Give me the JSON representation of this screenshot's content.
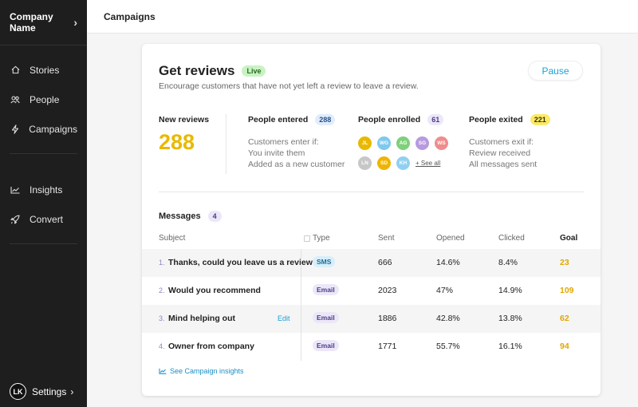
{
  "sidebar": {
    "company": "Company Name",
    "items_primary": [
      {
        "label": "Stories",
        "icon": "home-icon"
      },
      {
        "label": "People",
        "icon": "people-icon"
      },
      {
        "label": "Campaigns",
        "icon": "lightning-icon"
      }
    ],
    "items_secondary": [
      {
        "label": "Insights",
        "icon": "chart-icon"
      },
      {
        "label": "Convert",
        "icon": "rocket-icon"
      }
    ],
    "settings": {
      "label": "Settings",
      "avatar_initials": "LK"
    }
  },
  "topbar": {
    "title": "Campaigns"
  },
  "campaign": {
    "title": "Get reviews",
    "status": "Live",
    "description": "Encourage customers that have not yet left a review to leave a review.",
    "pause_label": "Pause",
    "new_reviews_label": "New reviews",
    "new_reviews_value": "288",
    "entered": {
      "label": "People entered",
      "count": "288",
      "lines": [
        "Customers enter if:",
        "You invite them",
        "Added as a new customer"
      ]
    },
    "enrolled": {
      "label": "People enrolled",
      "count": "61",
      "avatars": [
        {
          "initials": "JL",
          "color": "#e9b800"
        },
        {
          "initials": "WG",
          "color": "#7fc8ee"
        },
        {
          "initials": "AG",
          "color": "#7fd07a"
        },
        {
          "initials": "SG",
          "color": "#b79ae0"
        },
        {
          "initials": "WS",
          "color": "#f08c8c"
        },
        {
          "initials": "LN",
          "color": "#c7c7c7"
        },
        {
          "initials": "SD",
          "color": "#f0b400"
        },
        {
          "initials": "KH",
          "color": "#8fd0f2"
        }
      ],
      "see_all": "+ See all"
    },
    "exited": {
      "label": "People exited",
      "count": "221",
      "lines": [
        "Customers exit if:",
        "Review received",
        "All messages sent"
      ]
    }
  },
  "messages": {
    "title": "Messages",
    "count": "4",
    "columns": [
      "Subject",
      "Type",
      "Sent",
      "Opened",
      "Clicked",
      "Goal"
    ],
    "rows": [
      {
        "num": "1.",
        "subject": "Thanks, could you leave us a review",
        "type": "SMS",
        "sent": "666",
        "opened": "14.6%",
        "clicked": "8.4%",
        "goal": "23",
        "edit": ""
      },
      {
        "num": "2.",
        "subject": "Would you recommend",
        "type": "Email",
        "sent": "2023",
        "opened": "47%",
        "clicked": "14.9%",
        "goal": "109",
        "edit": ""
      },
      {
        "num": "3.",
        "subject": "Mind helping out",
        "type": "Email",
        "sent": "1886",
        "opened": "42.8%",
        "clicked": "13.8%",
        "goal": "62",
        "edit": "Edit"
      },
      {
        "num": "4.",
        "subject": "Owner from company",
        "type": "Email",
        "sent": "1771",
        "opened": "55.7%",
        "clicked": "16.1%",
        "goal": "94",
        "edit": ""
      }
    ],
    "insights_link": "See Campaign insights"
  }
}
